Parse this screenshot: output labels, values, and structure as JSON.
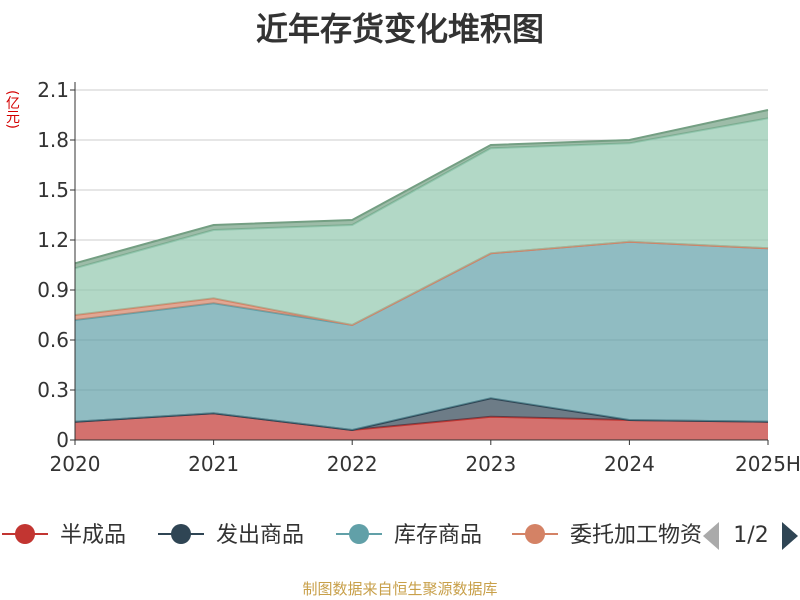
{
  "chart_data": {
    "type": "area",
    "title": "近年存货变化堆积图",
    "unit_label": "(亿元)",
    "categories": [
      "2020",
      "2021",
      "2022",
      "2023",
      "2024",
      "2025H"
    ],
    "ylim": [
      0,
      2.1
    ],
    "yticks": [
      "0",
      "0.3",
      "0.6",
      "0.9",
      "1.2",
      "1.5",
      "1.8",
      "2.1"
    ],
    "series": [
      {
        "name": "半成品",
        "values": [
          0.11,
          0.16,
          0.06,
          0.14,
          0.12,
          0.11
        ],
        "color": "#c23531"
      },
      {
        "name": "发出商品",
        "values": [
          0.0,
          0.0,
          0.0,
          0.11,
          0.0,
          0.0
        ],
        "color": "#2f4554"
      },
      {
        "name": "库存商品",
        "values": [
          0.61,
          0.66,
          0.63,
          0.87,
          1.07,
          1.04
        ],
        "color": "#61a0a8"
      },
      {
        "name": "委托加工物资",
        "values": [
          0.03,
          0.03,
          0.0,
          0.0,
          0.0,
          0.0
        ],
        "color": "#d48265"
      },
      {
        "name": "",
        "values": [
          0.28,
          0.41,
          0.6,
          0.63,
          0.59,
          0.78
        ],
        "color": "#91c7ae"
      },
      {
        "name": "",
        "values": [
          0.03,
          0.03,
          0.03,
          0.02,
          0.02,
          0.05
        ],
        "color": "#749f83"
      }
    ],
    "legend": {
      "placement": "bottom",
      "page": "1/2"
    },
    "grid": true
  },
  "footer": "制图数据来自恒生聚源数据库"
}
